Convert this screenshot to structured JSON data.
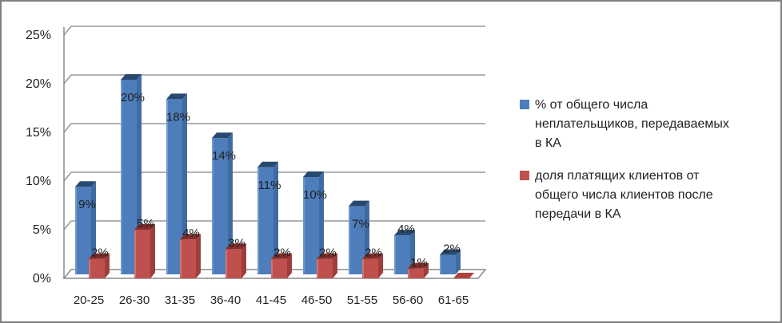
{
  "window": {
    "background": "#ffffff",
    "border_color": "#7f8080"
  },
  "chart_data": {
    "type": "bar",
    "style": "3d-clustered-column",
    "title": "",
    "xlabel": "",
    "ylabel": "",
    "grid": true,
    "legend_position": "right",
    "text_color": "#1f1f1f",
    "grid_color": "#979797",
    "axis_color": "#8a8a8a",
    "categories": [
      "20-25",
      "26-30",
      "31-35",
      "36-40",
      "41-45",
      "46-50",
      "51-55",
      "56-60",
      "61-65"
    ],
    "y_axis": {
      "min": 0,
      "max": 25,
      "step": 5,
      "tick_labels": [
        "0%",
        "5%",
        "10%",
        "15%",
        "20%",
        "25%"
      ]
    },
    "series": [
      {
        "name": "% от общего числа неплательщиков, передаваемых в КА",
        "values": [
          9,
          20,
          18,
          14,
          11,
          10,
          7,
          4,
          2
        ],
        "labels": [
          "9%",
          "20%",
          "18%",
          "14%",
          "11%",
          "10%",
          "7%",
          "4%",
          "2%"
        ],
        "colors": {
          "front": "#4e7dbb",
          "top": "#28496f",
          "side": "#3f6ba3",
          "highlight": "#7fa3d4"
        }
      },
      {
        "name": "доля платящих клиентов от общего числа клиентов после передачи в КА",
        "values": [
          2,
          5,
          4,
          3,
          2,
          2,
          2,
          1,
          0
        ],
        "labels": [
          "2%",
          "5%",
          "4%",
          "3%",
          "2%",
          "2%",
          "2%",
          "1%",
          ""
        ],
        "colors": {
          "front": "#c0504d",
          "top": "#7f2f2c",
          "side": "#9e3d3a",
          "highlight": "#d3827e"
        }
      }
    ]
  }
}
